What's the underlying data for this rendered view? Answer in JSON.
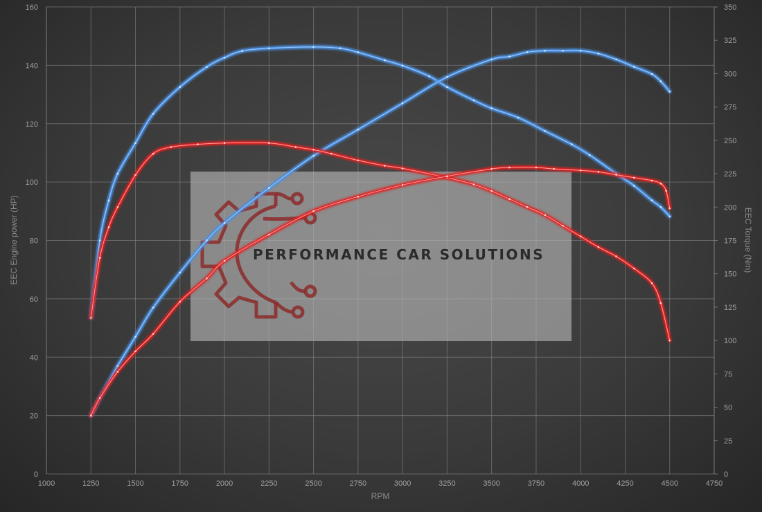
{
  "chart_data": {
    "type": "line",
    "title": "",
    "xlabel": "RPM",
    "ylabel_left": "EEC Engine power (HP)",
    "ylabel_right": "EEC Torque (Nm)",
    "xlim": [
      1000,
      4750
    ],
    "ylim_left": [
      0,
      160
    ],
    "ylim_right": [
      0,
      350
    ],
    "x_ticks": [
      1000,
      1250,
      1500,
      1750,
      2000,
      2250,
      2500,
      2750,
      3000,
      3250,
      3500,
      3750,
      4000,
      4250,
      4500,
      4750
    ],
    "y_left_ticks": [
      0,
      20,
      40,
      60,
      80,
      100,
      120,
      140,
      160
    ],
    "y_right_ticks": [
      0,
      25,
      50,
      75,
      100,
      125,
      150,
      175,
      200,
      225,
      250,
      275,
      300,
      325,
      350
    ],
    "grid": true,
    "legend": "none",
    "series": [
      {
        "axis": "right",
        "color": "#4a90e2",
        "points": [
          [
            1250,
            117
          ],
          [
            1300,
            175
          ],
          [
            1350,
            205
          ],
          [
            1400,
            225
          ],
          [
            1500,
            248
          ],
          [
            1600,
            270
          ],
          [
            1750,
            290
          ],
          [
            1900,
            305
          ],
          [
            2000,
            312
          ],
          [
            2100,
            317
          ],
          [
            2250,
            319
          ],
          [
            2500,
            320
          ],
          [
            2650,
            319
          ],
          [
            2750,
            316
          ],
          [
            2900,
            310
          ],
          [
            3000,
            306
          ],
          [
            3150,
            298
          ],
          [
            3250,
            290
          ],
          [
            3400,
            280
          ],
          [
            3500,
            274
          ],
          [
            3650,
            267
          ],
          [
            3800,
            257
          ],
          [
            3950,
            247
          ],
          [
            4050,
            239
          ],
          [
            4200,
            225
          ],
          [
            4300,
            216
          ],
          [
            4400,
            205
          ],
          [
            4450,
            200
          ],
          [
            4500,
            193
          ]
        ]
      },
      {
        "axis": "left",
        "color": "#4a90e2",
        "points": [
          [
            1250,
            20
          ],
          [
            1300,
            26
          ],
          [
            1400,
            37
          ],
          [
            1500,
            47
          ],
          [
            1600,
            57
          ],
          [
            1750,
            69
          ],
          [
            1900,
            80
          ],
          [
            2000,
            86
          ],
          [
            2250,
            98
          ],
          [
            2500,
            109
          ],
          [
            2750,
            118
          ],
          [
            3000,
            127
          ],
          [
            3250,
            136
          ],
          [
            3500,
            142
          ],
          [
            3600,
            143
          ],
          [
            3700,
            144.5
          ],
          [
            3800,
            145
          ],
          [
            3900,
            145
          ],
          [
            4000,
            145
          ],
          [
            4100,
            144
          ],
          [
            4200,
            142
          ],
          [
            4300,
            139.5
          ],
          [
            4400,
            137
          ],
          [
            4450,
            134.5
          ],
          [
            4500,
            131
          ]
        ]
      },
      {
        "axis": "right",
        "color": "#e02020",
        "points": [
          [
            1250,
            117
          ],
          [
            1300,
            162
          ],
          [
            1350,
            185
          ],
          [
            1400,
            200
          ],
          [
            1500,
            224
          ],
          [
            1600,
            240
          ],
          [
            1700,
            245
          ],
          [
            1850,
            247
          ],
          [
            2000,
            248
          ],
          [
            2250,
            248
          ],
          [
            2400,
            245
          ],
          [
            2500,
            243
          ],
          [
            2600,
            240
          ],
          [
            2750,
            235
          ],
          [
            2900,
            231
          ],
          [
            3000,
            229
          ],
          [
            3250,
            222
          ],
          [
            3400,
            217
          ],
          [
            3500,
            212
          ],
          [
            3600,
            206
          ],
          [
            3700,
            200
          ],
          [
            3800,
            194
          ],
          [
            3900,
            186
          ],
          [
            4000,
            178
          ],
          [
            4100,
            170
          ],
          [
            4200,
            163
          ],
          [
            4300,
            154
          ],
          [
            4400,
            143
          ],
          [
            4450,
            128
          ],
          [
            4500,
            100
          ]
        ]
      },
      {
        "axis": "left",
        "color": "#e02020",
        "points": [
          [
            1250,
            20
          ],
          [
            1300,
            26
          ],
          [
            1400,
            35
          ],
          [
            1500,
            42
          ],
          [
            1600,
            48
          ],
          [
            1750,
            59
          ],
          [
            1900,
            67
          ],
          [
            2000,
            73
          ],
          [
            2250,
            82
          ],
          [
            2500,
            90
          ],
          [
            2750,
            95
          ],
          [
            3000,
            99
          ],
          [
            3250,
            102
          ],
          [
            3500,
            104.5
          ],
          [
            3600,
            105
          ],
          [
            3750,
            105
          ],
          [
            3850,
            104.5
          ],
          [
            4000,
            104
          ],
          [
            4100,
            103.5
          ],
          [
            4200,
            102.5
          ],
          [
            4300,
            101.5
          ],
          [
            4400,
            100.5
          ],
          [
            4450,
            99.5
          ],
          [
            4480,
            97
          ],
          [
            4500,
            91
          ]
        ]
      }
    ]
  },
  "watermark": {
    "text": "PERFORMANCE CAR SOLUTIONS",
    "logo_color": "#8b2a2a"
  }
}
